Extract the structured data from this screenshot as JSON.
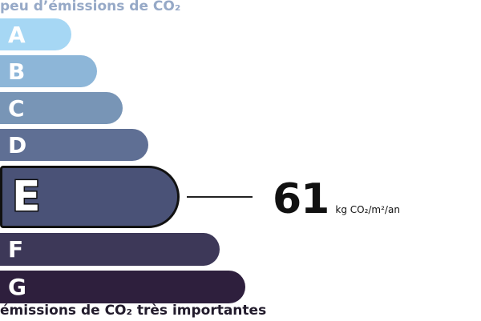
{
  "header": {
    "caption_top": "peu d’émissions de CO₂"
  },
  "footer": {
    "caption_bottom": "émissions de CO₂ très importantes"
  },
  "colors": {
    "A": "#a6d7f4",
    "B": "#8db6d8",
    "C": "#7895b6",
    "D": "#5f6f94",
    "E": "#4a5277",
    "F": "#3d3858",
    "G": "#2e1f3d",
    "caption_top": "#96a9c7",
    "caption_bottom": "#221b2c",
    "outline": "#111111"
  },
  "chart_data": {
    "type": "bar",
    "categories": [
      "A",
      "B",
      "C",
      "D",
      "E",
      "F",
      "G"
    ],
    "selected_class": "E",
    "value": "61",
    "unit": "kg CO₂/m²/an"
  }
}
